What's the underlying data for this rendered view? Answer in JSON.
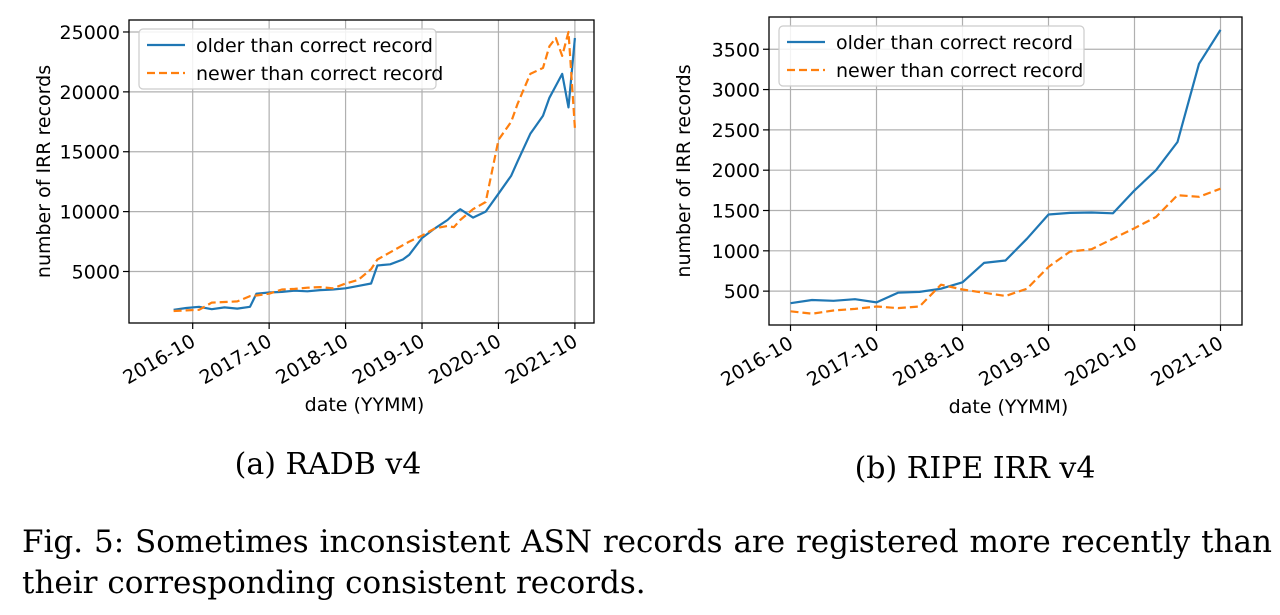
{
  "chart_data": [
    {
      "type": "line",
      "subcaption": "(a) RADB v4",
      "xlabel": "date (YYMM)",
      "ylabel": "number of IRR records",
      "x_ticks": [
        "2016-10",
        "2017-10",
        "2018-10",
        "2019-10",
        "2020-10",
        "2021-10"
      ],
      "y_ticks": [
        5000,
        10000,
        15000,
        20000,
        25000
      ],
      "xlim": [
        "2015-12",
        "2022-01"
      ],
      "ylim": [
        700,
        26000
      ],
      "grid": true,
      "legend_position": "top-left",
      "series": [
        {
          "name": "older than correct record",
          "color": "#1f77b4",
          "style": "solid",
          "x": [
            "2016-07",
            "2016-09",
            "2016-11",
            "2017-01",
            "2017-03",
            "2017-05",
            "2017-07",
            "2017-08",
            "2017-10",
            "2017-12",
            "2018-02",
            "2018-04",
            "2018-06",
            "2018-08",
            "2018-10",
            "2018-12",
            "2019-02",
            "2019-03",
            "2019-05",
            "2019-07",
            "2019-08",
            "2019-10",
            "2019-12",
            "2020-02",
            "2020-03",
            "2020-04",
            "2020-06",
            "2020-08",
            "2020-10",
            "2020-12",
            "2021-01",
            "2021-03",
            "2021-05",
            "2021-06",
            "2021-07",
            "2021-08",
            "2021-09",
            "2021-10"
          ],
          "y": [
            1800,
            1950,
            2050,
            1850,
            2000,
            1900,
            2050,
            3150,
            3250,
            3300,
            3400,
            3350,
            3450,
            3500,
            3600,
            3800,
            4000,
            5500,
            5600,
            6000,
            6400,
            7800,
            8600,
            9300,
            9800,
            10200,
            9500,
            10000,
            11500,
            13000,
            14200,
            16500,
            18000,
            19500,
            20500,
            21500,
            18700,
            24500
          ]
        },
        {
          "name": "newer than correct record",
          "color": "#ff7f0e",
          "style": "dashed",
          "x": [
            "2016-07",
            "2016-09",
            "2016-11",
            "2017-01",
            "2017-03",
            "2017-05",
            "2017-07",
            "2017-08",
            "2017-10",
            "2017-12",
            "2018-02",
            "2018-04",
            "2018-06",
            "2018-08",
            "2018-10",
            "2018-12",
            "2019-02",
            "2019-03",
            "2019-05",
            "2019-07",
            "2019-08",
            "2019-10",
            "2019-12",
            "2020-02",
            "2020-03",
            "2020-04",
            "2020-06",
            "2020-08",
            "2020-10",
            "2020-12",
            "2021-01",
            "2021-03",
            "2021-05",
            "2021-06",
            "2021-07",
            "2021-08",
            "2021-09",
            "2021-10"
          ],
          "y": [
            1700,
            1750,
            1800,
            2400,
            2450,
            2500,
            2950,
            3000,
            3150,
            3500,
            3550,
            3650,
            3700,
            3600,
            4000,
            4300,
            5200,
            6000,
            6600,
            7200,
            7500,
            8000,
            8600,
            8800,
            8700,
            9300,
            10200,
            10800,
            16000,
            17500,
            19000,
            21500,
            22000,
            23800,
            24500,
            23000,
            25000,
            17000
          ]
        }
      ]
    },
    {
      "type": "line",
      "subcaption": "(b) RIPE IRR v4",
      "xlabel": "date (YYMM)",
      "ylabel": "number of IRR records",
      "x_ticks": [
        "2016-10",
        "2017-10",
        "2018-10",
        "2019-10",
        "2020-10",
        "2021-10"
      ],
      "y_ticks": [
        500,
        1000,
        1500,
        2000,
        2500,
        3000,
        3500
      ],
      "xlim": [
        "2016-07",
        "2022-01"
      ],
      "ylim": [
        80,
        3900
      ],
      "grid": true,
      "legend_position": "top-left",
      "series": [
        {
          "name": "older than correct record",
          "color": "#1f77b4",
          "style": "solid",
          "x": [
            "2016-10",
            "2017-01",
            "2017-04",
            "2017-07",
            "2017-10",
            "2018-01",
            "2018-04",
            "2018-07",
            "2018-10",
            "2019-01",
            "2019-04",
            "2019-07",
            "2019-10",
            "2020-01",
            "2020-04",
            "2020-07",
            "2020-10",
            "2021-01",
            "2021-04",
            "2021-07",
            "2021-10"
          ],
          "y": [
            350,
            390,
            380,
            400,
            360,
            480,
            490,
            530,
            610,
            850,
            880,
            1150,
            1450,
            1470,
            1475,
            1465,
            1750,
            2000,
            2350,
            3320,
            3740
          ],
          "y_note": ""
        },
        {
          "name": "newer than correct record",
          "color": "#ff7f0e",
          "style": "dashed",
          "x": [
            "2016-10",
            "2017-01",
            "2017-04",
            "2017-07",
            "2017-10",
            "2018-01",
            "2018-04",
            "2018-07",
            "2018-10",
            "2019-01",
            "2019-04",
            "2019-07",
            "2019-10",
            "2020-01",
            "2020-04",
            "2020-07",
            "2020-10",
            "2021-01",
            "2021-04",
            "2021-07",
            "2021-10"
          ],
          "y": [
            250,
            220,
            260,
            280,
            310,
            290,
            310,
            580,
            520,
            480,
            440,
            530,
            800,
            990,
            1020,
            1150,
            1280,
            1420,
            1690,
            1670,
            1770
          ]
        }
      ]
    }
  ],
  "caption": "Fig. 5: Sometimes inconsistent ASN records are registered more recently than their corresponding consistent records."
}
